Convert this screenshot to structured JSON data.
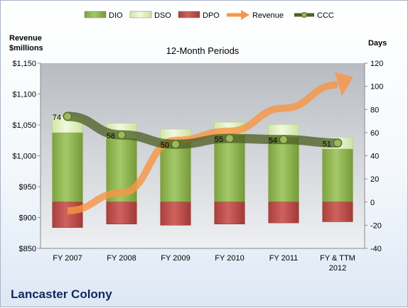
{
  "company": "Lancaster Colony",
  "chart_data": {
    "type": "bar",
    "title": "12-Month Periods",
    "y_left_label": [
      "Revenue",
      "$millions"
    ],
    "y_right_label": "Days",
    "categories": [
      "FY 2007",
      "FY 2008",
      "FY 2009",
      "FY 2010",
      "FY 2011",
      "FY & TTM 2012"
    ],
    "left_axis": {
      "min": 850,
      "max": 1150,
      "step": 50,
      "tick_prefix": "$"
    },
    "right_axis": {
      "min": -40,
      "max": 120,
      "step": 20
    },
    "legend": {
      "position": "top",
      "items": [
        {
          "name": "DIO",
          "kind": "bar",
          "color": "#8db44a"
        },
        {
          "name": "DSO",
          "kind": "bar",
          "color": "#d8ecb0"
        },
        {
          "name": "DPO",
          "kind": "bar",
          "color": "#c0504d"
        },
        {
          "name": "Revenue",
          "kind": "arrow",
          "color": "#f79646"
        },
        {
          "name": "CCC",
          "kind": "line",
          "color": "#4f6228"
        }
      ]
    },
    "series": [
      {
        "name": "DIO",
        "axis": "right",
        "values": [
          60,
          55,
          53,
          58,
          56,
          46
        ]
      },
      {
        "name": "DSO",
        "axis": "right",
        "values": [
          14,
          13,
          10,
          11,
          11,
          10
        ]
      },
      {
        "name": "DPO",
        "axis": "right",
        "values": [
          -22,
          -19,
          -20,
          -19,
          -18,
          -17
        ]
      },
      {
        "name": "Revenue",
        "axis": "left",
        "values": [
          911,
          940,
          1025,
          1040,
          1077,
          1115
        ]
      },
      {
        "name": "CCC",
        "axis": "right",
        "values": [
          74,
          58,
          50,
          55,
          54,
          51
        ]
      }
    ],
    "data_labels": {
      "series": "CCC",
      "values": [
        "74",
        "58",
        "50",
        "55",
        "54",
        "51"
      ]
    }
  }
}
